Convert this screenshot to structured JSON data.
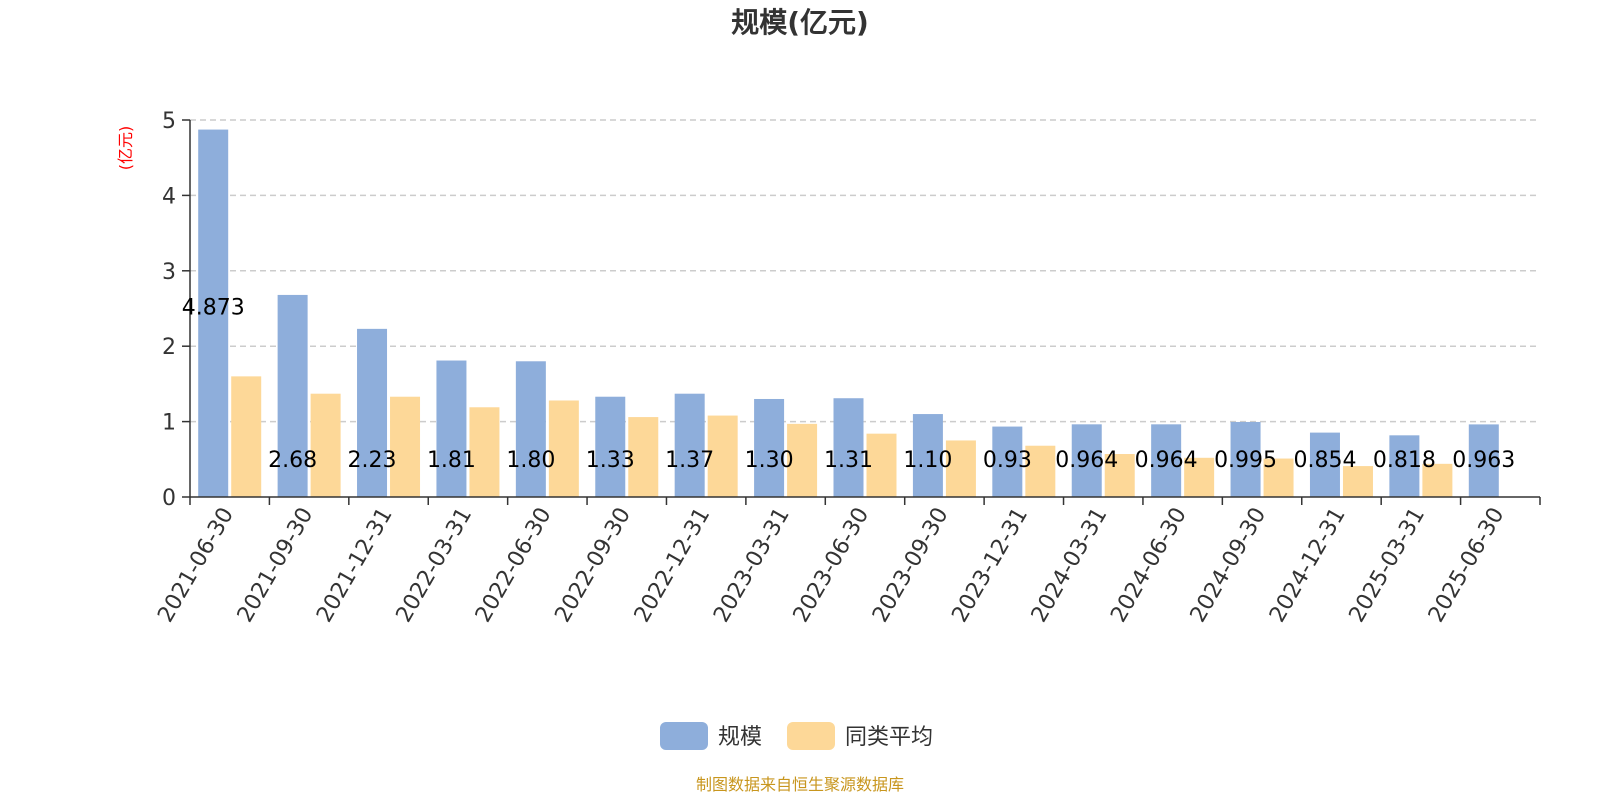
{
  "chart_data": {
    "type": "bar",
    "title": "规模(亿元)",
    "ylabel": "(亿元)",
    "ylim": [
      0,
      5
    ],
    "yticks": [
      "0",
      "1",
      "2",
      "3",
      "4",
      "5"
    ],
    "grid": true,
    "legend_position": "bottom",
    "categories": [
      "2021-06-30",
      "2021-09-30",
      "2021-12-31",
      "2022-03-31",
      "2022-06-30",
      "2022-09-30",
      "2022-12-31",
      "2023-03-31",
      "2023-06-30",
      "2023-09-30",
      "2023-12-31",
      "2024-03-31",
      "2024-06-30",
      "2024-09-30",
      "2024-12-31",
      "2025-03-31",
      "2025-06-30"
    ],
    "series": [
      {
        "name": "规模",
        "color": "#8eaedb",
        "values": [
          4.873,
          2.68,
          2.23,
          1.81,
          1.8,
          1.33,
          1.37,
          1.3,
          1.31,
          1.1,
          0.934,
          0.964,
          0.964,
          0.995,
          0.854,
          0.818,
          0.963
        ],
        "labels": [
          "4.873",
          "2.68",
          "2.23",
          "1.81",
          "1.80",
          "1.33",
          "1.37",
          "1.30",
          "1.31",
          "1.10",
          "0.93",
          "0.964",
          "0.964",
          "0.995",
          "0.854",
          "0.818",
          "0.963"
        ]
      },
      {
        "name": "同类平均",
        "color": "#fdd898",
        "values": [
          1.6,
          1.37,
          1.33,
          1.19,
          1.28,
          1.06,
          1.08,
          0.97,
          0.84,
          0.75,
          0.68,
          0.57,
          0.52,
          0.51,
          0.41,
          0.44,
          null
        ]
      }
    ]
  },
  "source_note": "制图数据来自恒生聚源数据库"
}
